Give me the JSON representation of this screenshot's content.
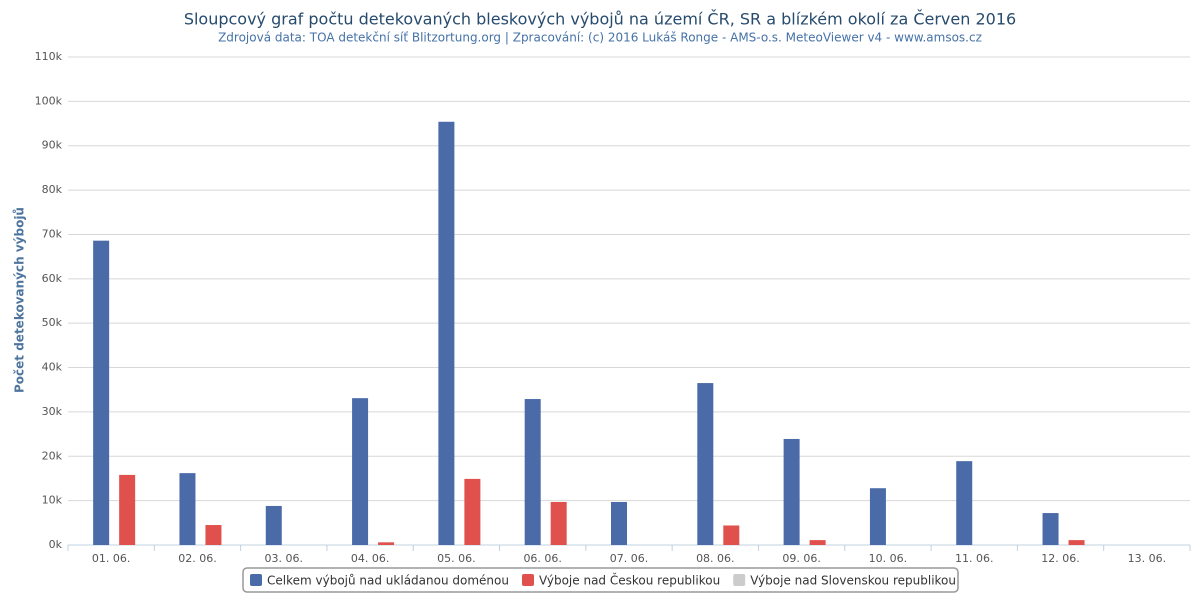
{
  "chart_data": {
    "type": "bar",
    "title": "Sloupcový graf počtu detekovaných bleskových výbojů na území ČR, SR a blízkém okolí za Červen 2016",
    "subtitle": "Zdrojová data: TOA detekční síť Blitzortung.org | Zpracování: (c) 2016 Lukáš Ronge - AMS-o.s. MeteoViewer v4 - www.amsos.cz",
    "y_label": "Počet detekovaných výbojů",
    "categories": [
      "01. 06.",
      "02. 06.",
      "03. 06.",
      "04. 06.",
      "05. 06.",
      "06. 06.",
      "07. 06.",
      "08. 06.",
      "09. 06.",
      "10. 06.",
      "11. 06.",
      "12. 06.",
      "13. 06."
    ],
    "series": [
      {
        "name": "Celkem výbojů nad ukládanou doménou",
        "color": "#4a6aa8",
        "visible": true,
        "values": [
          68600,
          16200,
          8800,
          33100,
          95400,
          32900,
          9700,
          36500,
          23900,
          12800,
          18900,
          7200,
          0
        ]
      },
      {
        "name": "Výboje nad Českou republikou",
        "color": "#e0504d",
        "visible": true,
        "values": [
          15800,
          4500,
          0,
          600,
          14900,
          9700,
          0,
          4400,
          1100,
          0,
          0,
          1100,
          0
        ]
      },
      {
        "name": "Výboje nad Slovenskou republikou",
        "color": "#cccccc",
        "visible": false,
        "values": [
          null,
          null,
          null,
          null,
          null,
          null,
          null,
          null,
          null,
          null,
          null,
          null,
          null
        ]
      }
    ],
    "ylim": [
      0,
      110000
    ],
    "yticks": [
      {
        "value": 0,
        "label": "0k"
      },
      {
        "value": 10000,
        "label": "10k"
      },
      {
        "value": 20000,
        "label": "20k"
      },
      {
        "value": 30000,
        "label": "30k"
      },
      {
        "value": 40000,
        "label": "40k"
      },
      {
        "value": 50000,
        "label": "50k"
      },
      {
        "value": 60000,
        "label": "60k"
      },
      {
        "value": 70000,
        "label": "70k"
      },
      {
        "value": 80000,
        "label": "80k"
      },
      {
        "value": 90000,
        "label": "90k"
      },
      {
        "value": 100000,
        "label": "100k"
      },
      {
        "value": 110000,
        "label": "110k"
      }
    ],
    "grid": true,
    "legend": "bottom"
  }
}
